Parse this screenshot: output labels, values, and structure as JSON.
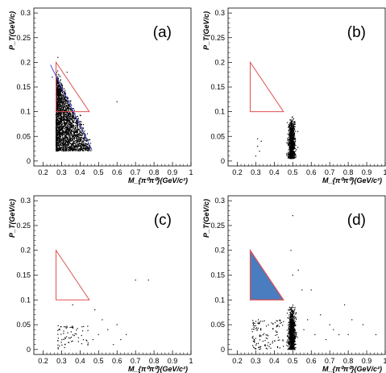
{
  "chart_data": [
    {
      "type": "scatter",
      "panel_label": "(a)",
      "xlabel": "M_{π⁰π⁰}(GeV/c²)",
      "ylabel": "P_T(GeV/c)",
      "xlim": [
        0.15,
        1.0
      ],
      "ylim": [
        -0.01,
        0.31
      ],
      "x_ticks": [
        "0.2",
        "0.3",
        "0.4",
        "0.5",
        "0.6",
        "0.7",
        "0.8",
        "0.9",
        "1"
      ],
      "y_ticks": [
        "0",
        "0.05",
        "0.1",
        "0.15",
        "0.2",
        "0.25",
        "0.3"
      ],
      "cuts": {
        "triangle": {
          "vertices": [
            [
              0.27,
              0.2
            ],
            [
              0.27,
              0.1
            ],
            [
              0.45,
              0.1
            ]
          ],
          "color": "#e05050",
          "filled": false
        },
        "line": {
          "from": [
            0.24,
            0.195
          ],
          "to": [
            0.465,
            0.022
          ],
          "color": "#4a4ad8"
        }
      },
      "clusters": [
        {
          "x_range": [
            0.27,
            0.46
          ],
          "y_range": [
            0.02,
            0.19
          ],
          "count": 2400,
          "bounded_by_line": true
        }
      ],
      "extra_points": [
        [
          0.28,
          0.21
        ],
        [
          0.6,
          0.12
        ],
        [
          0.33,
          0.18
        ],
        [
          0.25,
          0.17
        ]
      ]
    },
    {
      "type": "scatter",
      "panel_label": "(b)",
      "xlabel": "M_{π⁰π⁰}(GeV/c²)",
      "ylabel": "P_T(GeV/c)",
      "xlim": [
        0.15,
        1.0
      ],
      "ylim": [
        -0.01,
        0.31
      ],
      "x_ticks": [
        "0.2",
        "0.3",
        "0.4",
        "0.5",
        "0.6",
        "0.7",
        "0.8",
        "0.9",
        "1"
      ],
      "y_ticks": [
        "0",
        "0.05",
        "0.1",
        "0.15",
        "0.2",
        "0.25",
        "0.3"
      ],
      "cuts": {
        "triangle": {
          "vertices": [
            [
              0.27,
              0.2
            ],
            [
              0.27,
              0.1
            ],
            [
              0.45,
              0.1
            ]
          ],
          "color": "#e05050",
          "filled": false
        }
      },
      "clusters": [
        {
          "x_center": 0.495,
          "x_sigma": 0.009,
          "y_range": [
            0.005,
            0.09
          ],
          "count": 800
        }
      ],
      "extra_points": [
        [
          0.31,
          0.03
        ],
        [
          0.32,
          0.02
        ],
        [
          0.3,
          0.01
        ],
        [
          0.33,
          0.04
        ],
        [
          0.31,
          0.045
        ]
      ]
    },
    {
      "type": "scatter",
      "panel_label": "(c)",
      "xlabel": "M_{π⁰π⁰}(GeV/c²)",
      "ylabel": "P_T(GeV/c)",
      "xlim": [
        0.15,
        1.0
      ],
      "ylim": [
        -0.01,
        0.31
      ],
      "x_ticks": [
        "0.2",
        "0.3",
        "0.4",
        "0.5",
        "0.6",
        "0.7",
        "0.8",
        "0.9",
        "1"
      ],
      "y_ticks": [
        "0",
        "0.05",
        "0.1",
        "0.15",
        "0.2",
        "0.25",
        "0.3"
      ],
      "cuts": {
        "triangle": {
          "vertices": [
            [
              0.27,
              0.2
            ],
            [
              0.27,
              0.1
            ],
            [
              0.45,
              0.1
            ]
          ],
          "color": "#e05050",
          "filled": false
        }
      },
      "clusters": [
        {
          "x_range": [
            0.28,
            0.45
          ],
          "y_range": [
            0.0,
            0.05
          ],
          "count": 70
        }
      ],
      "extra_points": [
        [
          0.48,
          0.08
        ],
        [
          0.52,
          0.06
        ],
        [
          0.55,
          0.04
        ],
        [
          0.6,
          0.05
        ],
        [
          0.62,
          0.02
        ],
        [
          0.65,
          0.03
        ],
        [
          0.7,
          0.14
        ],
        [
          0.77,
          0.14
        ],
        [
          0.36,
          0.09
        ],
        [
          0.5,
          0.03
        ],
        [
          0.58,
          0.01
        ],
        [
          0.47,
          0.02
        ]
      ]
    },
    {
      "type": "scatter",
      "panel_label": "(d)",
      "xlabel": "M_{π⁰π⁰}(GeV/c²)",
      "ylabel": "P_T(GeV/c)",
      "xlim": [
        0.15,
        1.0
      ],
      "ylim": [
        -0.01,
        0.31
      ],
      "x_ticks": [
        "0.2",
        "0.3",
        "0.4",
        "0.5",
        "0.6",
        "0.7",
        "0.8",
        "0.9",
        "1"
      ],
      "y_ticks": [
        "0",
        "0.05",
        "0.1",
        "0.15",
        "0.2",
        "0.25",
        "0.3"
      ],
      "cuts": {
        "triangle": {
          "vertices": [
            [
              0.27,
              0.2
            ],
            [
              0.27,
              0.1
            ],
            [
              0.45,
              0.1
            ]
          ],
          "color": "#e05050",
          "filled": true,
          "fill": "#4a7cc0"
        }
      },
      "clusters": [
        {
          "x_center": 0.495,
          "x_sigma": 0.009,
          "y_range": [
            0.0,
            0.09
          ],
          "count": 850
        },
        {
          "x_range": [
            0.28,
            0.45
          ],
          "y_range": [
            0.0,
            0.06
          ],
          "count": 120
        }
      ],
      "extra_points": [
        [
          0.5,
          0.27
        ],
        [
          0.49,
          0.2
        ],
        [
          0.5,
          0.15
        ],
        [
          0.53,
          0.16
        ],
        [
          0.55,
          0.12
        ],
        [
          0.6,
          0.12
        ],
        [
          0.65,
          0.07
        ],
        [
          0.7,
          0.05
        ],
        [
          0.72,
          0.04
        ],
        [
          0.78,
          0.09
        ],
        [
          0.8,
          0.03
        ],
        [
          0.82,
          0.06
        ],
        [
          0.88,
          0.05
        ],
        [
          0.95,
          0.03
        ],
        [
          0.56,
          0.04
        ],
        [
          0.58,
          0.06
        ],
        [
          0.62,
          0.03
        ],
        [
          0.68,
          0.02
        ],
        [
          0.75,
          0.03
        ]
      ]
    }
  ]
}
